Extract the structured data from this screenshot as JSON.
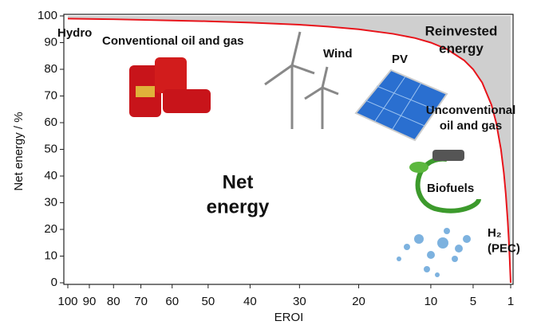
{
  "chart_data": {
    "type": "line",
    "x_label": "EROI",
    "y_label": "Net energy  /  %",
    "x": [
      100,
      80,
      60,
      50,
      40,
      30,
      25,
      20,
      15,
      12,
      10,
      8,
      6,
      5,
      4,
      3,
      2.5,
      2,
      1.7,
      1.5,
      1.3,
      1.2,
      1.1,
      1
    ],
    "series": [
      {
        "name": "Net energy",
        "color": "#e8141b",
        "values": [
          99,
          98.75,
          98.3,
          98,
          97.5,
          96.7,
          96,
          95,
          93.3,
          91.7,
          90,
          87.5,
          83.3,
          80,
          75,
          66.7,
          60,
          50,
          41.2,
          33.3,
          23.1,
          16.7,
          9.1,
          0
        ]
      }
    ],
    "xlim": [
      100,
      1
    ],
    "ylim": [
      0,
      100
    ],
    "xticks": [
      100,
      90,
      80,
      70,
      60,
      50,
      40,
      30,
      20,
      10,
      5,
      1
    ],
    "yticks": [
      0,
      10,
      20,
      30,
      40,
      50,
      60,
      70,
      80,
      90,
      100
    ],
    "fill_color": "#cfcfcf",
    "annotations": [
      [
        "Hydro"
      ],
      [
        "Conventional oil and gas"
      ],
      [
        "Wind"
      ],
      [
        "PV"
      ],
      [
        "Reinvested",
        "energy"
      ],
      [
        "Unconventional",
        "oil and gas"
      ],
      [
        "Biofuels"
      ],
      [
        "H₂",
        "(PEC)"
      ],
      [
        "Net",
        "energy"
      ]
    ]
  }
}
